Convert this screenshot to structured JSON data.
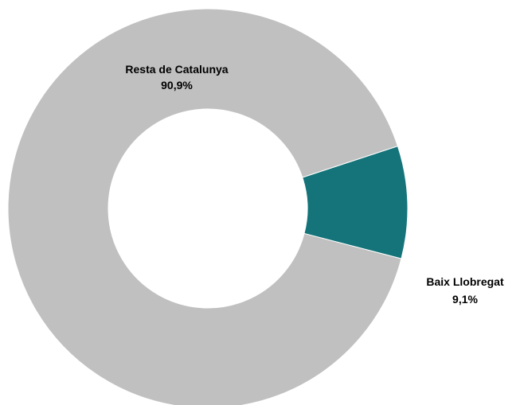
{
  "chart_data": {
    "type": "pie",
    "style": "donut",
    "title": "",
    "slices": [
      {
        "label": "Baix Llobregat",
        "value": 9.1,
        "value_label": "9,1%",
        "color": "#14747a"
      },
      {
        "label": "Resta de Catalunya",
        "value": 90.9,
        "value_label": "90,9%",
        "color": "#c0c0c0"
      }
    ]
  }
}
